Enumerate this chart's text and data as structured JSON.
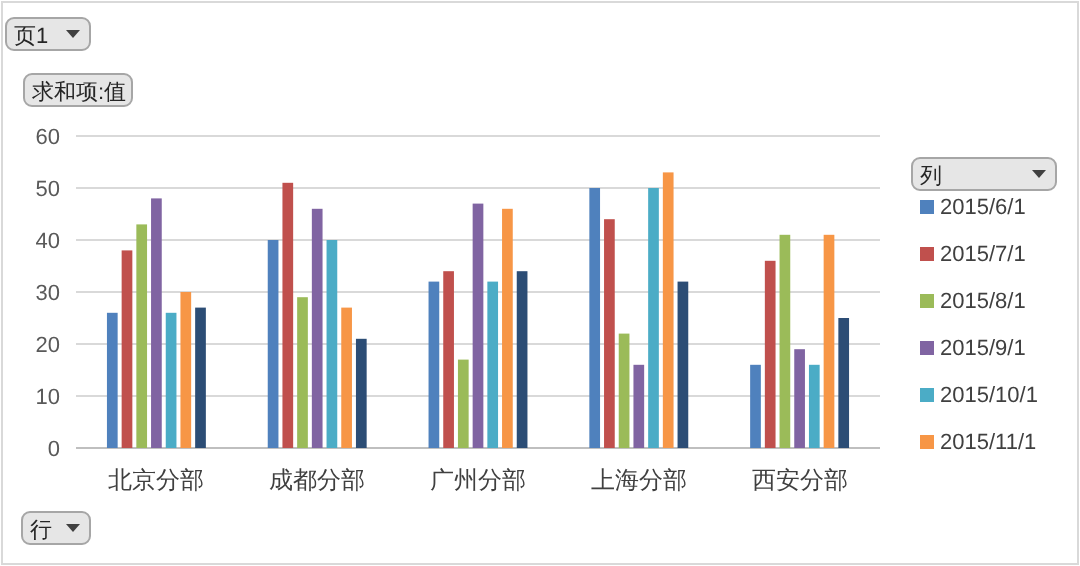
{
  "chart_data": {
    "type": "bar",
    "categories": [
      "北京分部",
      "成都分部",
      "广州分部",
      "上海分部",
      "西安分部"
    ],
    "series": [
      {
        "name": "2015/6/1",
        "color": "#4f81bd",
        "values": [
          26,
          40,
          32,
          50,
          16
        ]
      },
      {
        "name": "2015/7/1",
        "color": "#c0504d",
        "values": [
          38,
          51,
          34,
          44,
          36
        ]
      },
      {
        "name": "2015/8/1",
        "color": "#9bbb59",
        "values": [
          43,
          29,
          17,
          22,
          41
        ]
      },
      {
        "name": "2015/9/1",
        "color": "#8064a2",
        "values": [
          48,
          46,
          47,
          16,
          19
        ]
      },
      {
        "name": "2015/10/1",
        "color": "#4bacc6",
        "values": [
          26,
          40,
          32,
          50,
          16
        ]
      },
      {
        "name": "2015/11/1",
        "color": "#f79646",
        "values": [
          30,
          27,
          46,
          53,
          41
        ]
      },
      {
        "color": "#2c4d75",
        "values": [
          27,
          21,
          34,
          32,
          25
        ]
      }
    ],
    "ylim": [
      0,
      60
    ],
    "yticks": [
      0,
      10,
      20,
      30,
      40,
      50,
      60
    ],
    "grid": "y",
    "legend": "right",
    "legend_title": "列",
    "annotations": [
      "页1",
      "求和项:值",
      "行"
    ]
  }
}
